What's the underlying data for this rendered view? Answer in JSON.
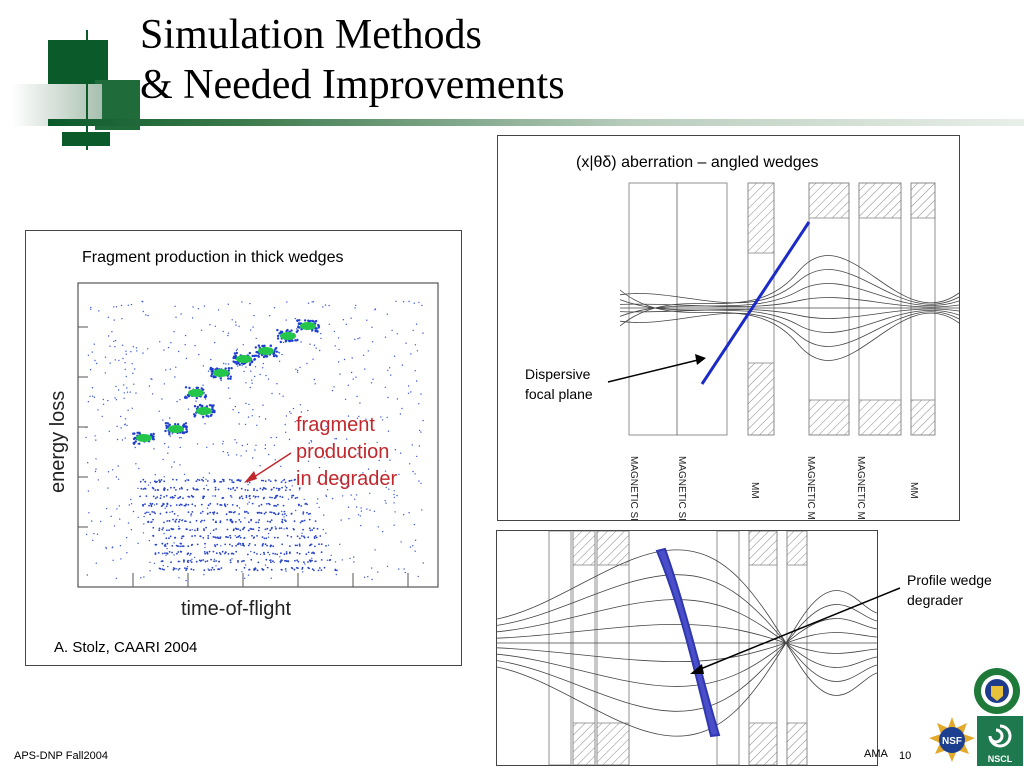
{
  "slide": {
    "title_line1": "Simulation Methods",
    "title_line2": "& Needed Improvements"
  },
  "left_panel": {
    "caption": "Fragment production in thick wedges",
    "y_axis_label": "energy loss",
    "x_axis_label": "time-of-flight",
    "annotation_line1": "fragment",
    "annotation_line2": "production",
    "annotation_line3": "in degrader",
    "credit": "A. Stolz, CAARI 2004"
  },
  "top_right_panel": {
    "caption": "(x|θδ) aberration – angled wedges",
    "element_labels": [
      "MAGNETIC SECTOR",
      "MAGNETIC SECTOR",
      "MM",
      "MAGNETIC MULTIPOL",
      "MAGNETIC MULTIPOL",
      "MM"
    ],
    "annotation_line1": "Dispersive",
    "annotation_line2": "focal plane"
  },
  "bottom_right_panel": {
    "annotation_line1": "Profile wedge",
    "annotation_line2": "degrader"
  },
  "footer": {
    "left_text": "APS-DNP Fall2004",
    "author_text": "AMA",
    "page_number": "10"
  },
  "logos": {
    "doe_icon": "doe-seal-icon",
    "nsf_icon": "nsf-logo-icon",
    "nscl_icon": "nscl-logo-icon",
    "nsf_text": "NSF",
    "nscl_text": "NSCL"
  },
  "colors": {
    "accent_green": "#0b5a2a",
    "annotation_red": "#c0282d",
    "focal_blue": "#1c2bc8",
    "wedge_blue": "#4a4ec8"
  }
}
